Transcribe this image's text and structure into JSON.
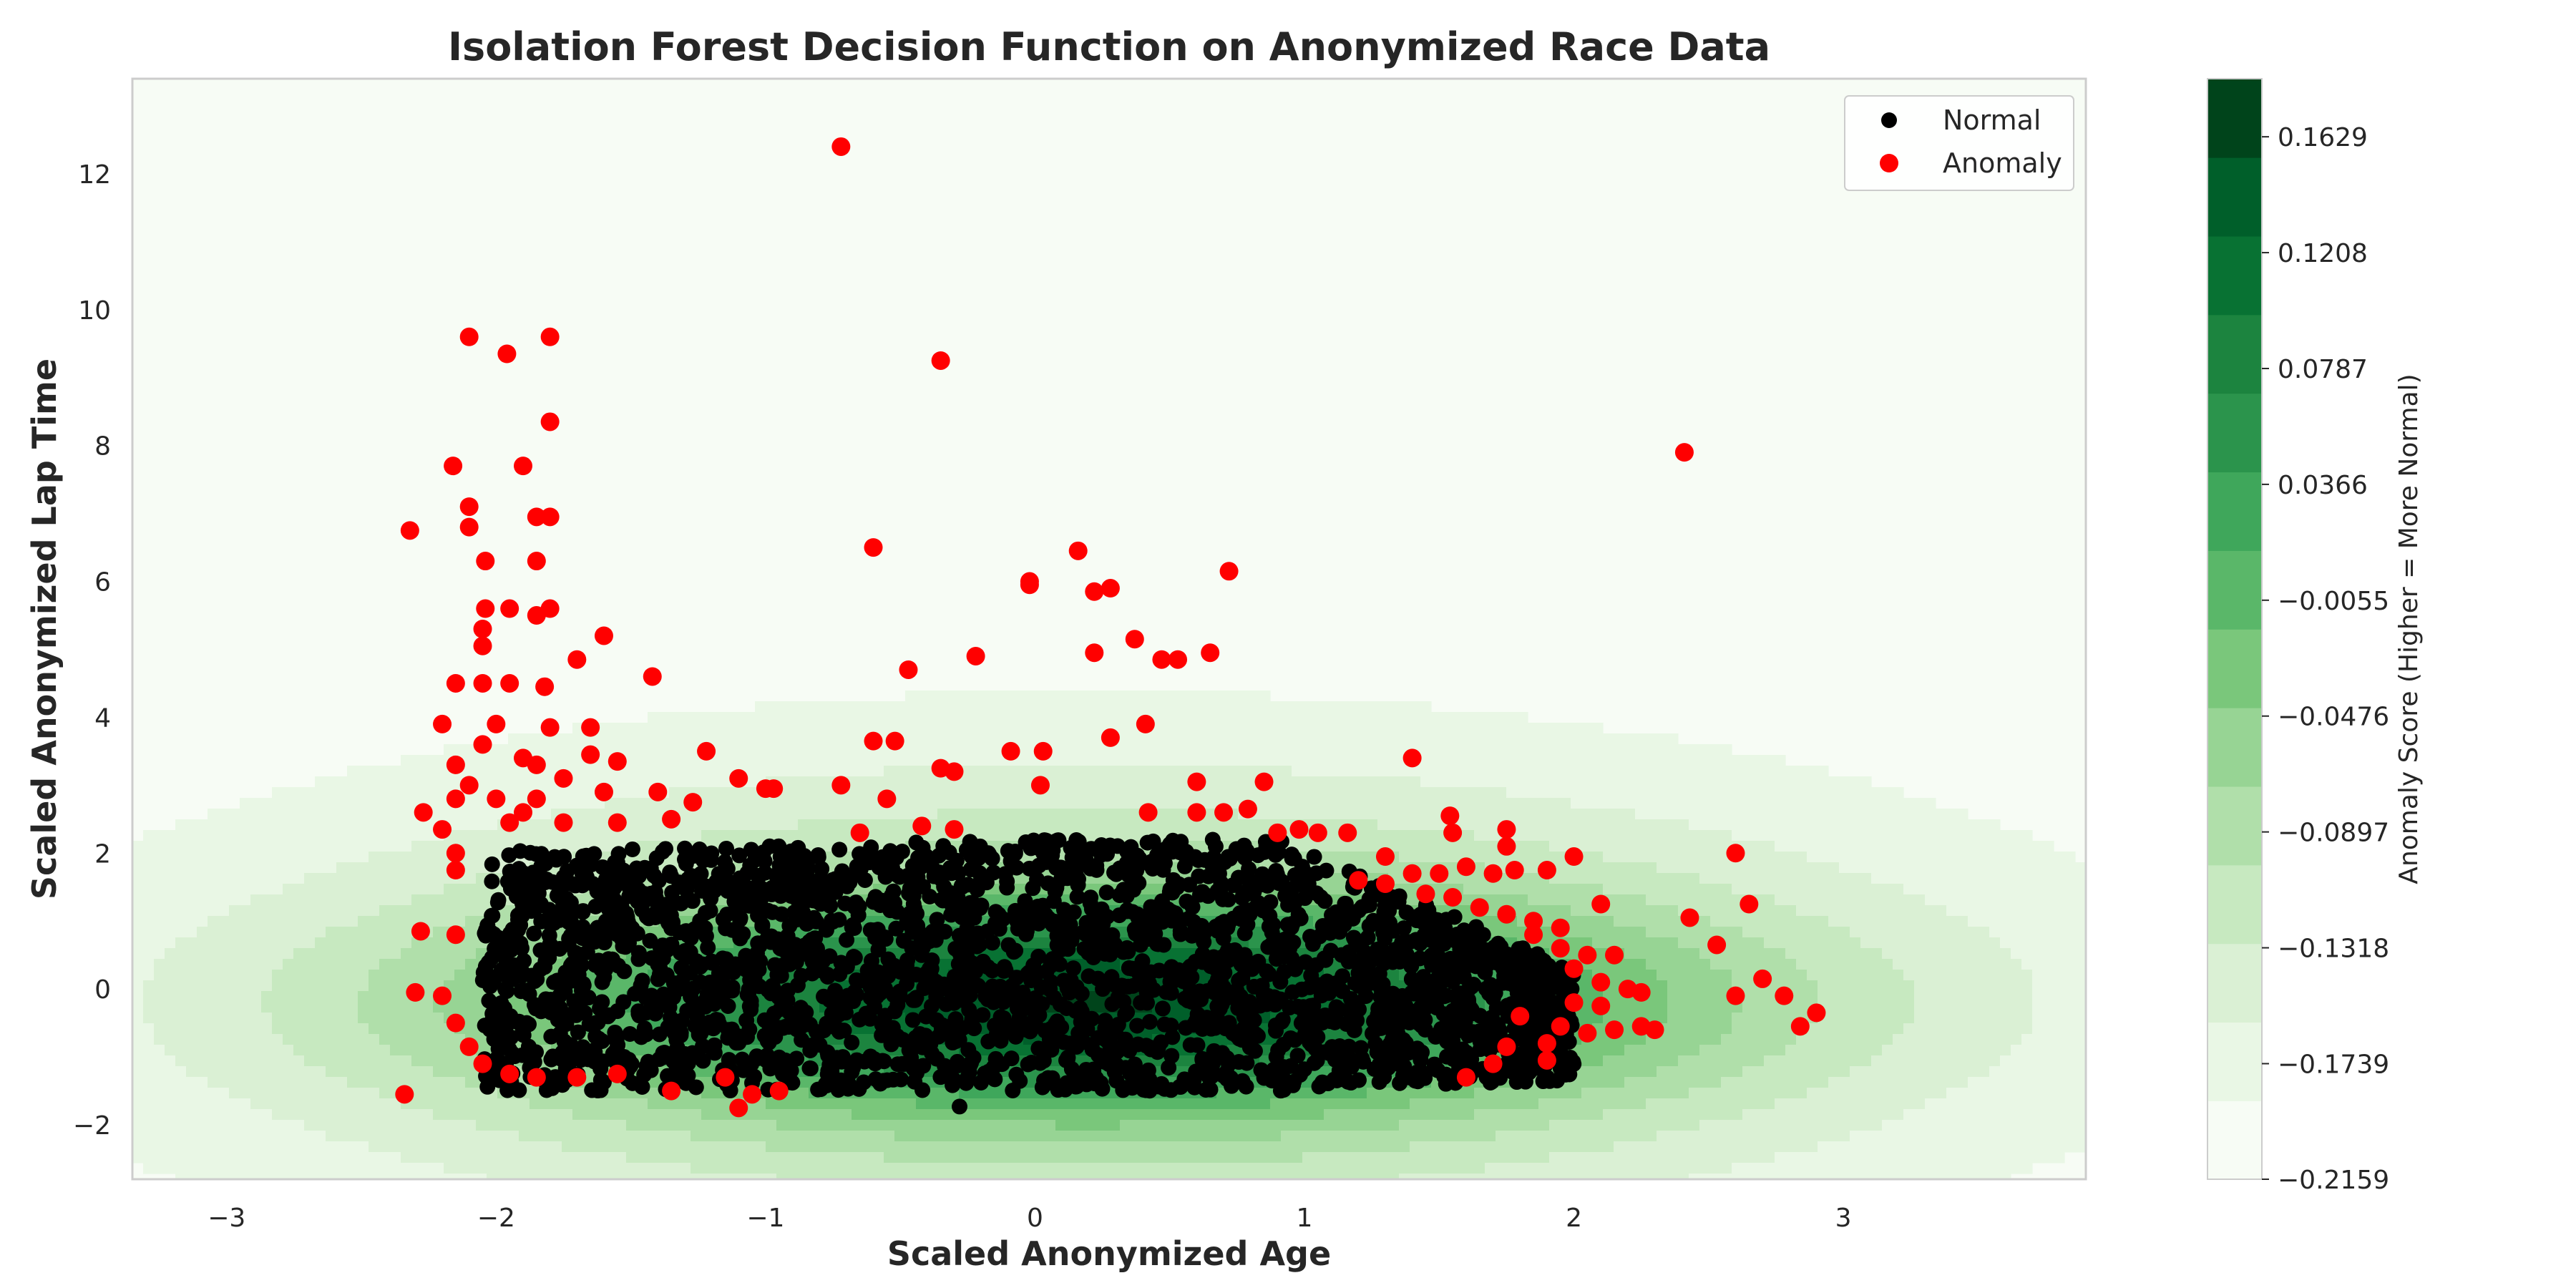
{
  "chart_data": {
    "type": "scatter",
    "title": "Isolation Forest Decision Function on Anonymized Race Data",
    "xlabel": "Scaled Anonymized Age",
    "ylabel": "Scaled Anonymized Lap Time",
    "xlim": [
      -3.35,
      3.9
    ],
    "ylim": [
      -2.8,
      13.4
    ],
    "x_ticks": [
      -3,
      -2,
      -1,
      0,
      1,
      2,
      3
    ],
    "y_ticks": [
      -2,
      0,
      2,
      4,
      6,
      8,
      10,
      12
    ],
    "x_tick_labels": [
      "−3",
      "−2",
      "−1",
      "0",
      "1",
      "2",
      "3"
    ],
    "y_tick_labels": [
      "−2",
      "0",
      "2",
      "4",
      "6",
      "8",
      "10",
      "12"
    ],
    "grid": false,
    "legend_position": "top-right",
    "background": {
      "type": "filled-contour",
      "colormap": "Greens",
      "meaning": "Isolation Forest decision function (anomaly score)",
      "score_range": [
        -0.2159,
        0.184
      ],
      "peak_location": [
        0.2,
        -0.2
      ],
      "low_region": "top-right"
    },
    "series": [
      {
        "name": "Normal",
        "color": "#000000",
        "description": "Dense cluster roughly x in [-2.05, 2.0], y in [-1.5, 2.2]",
        "region": {
          "x": [
            -2.05,
            2.0
          ],
          "y_low": -1.5,
          "y_high": 2.2
        },
        "extra_points": [
          [
            -0.28,
            -1.73
          ]
        ]
      },
      {
        "name": "Anomaly",
        "color": "#ff0000",
        "points": [
          [
            -0.72,
            12.4
          ],
          [
            -2.1,
            9.6
          ],
          [
            -1.96,
            9.35
          ],
          [
            -1.8,
            9.6
          ],
          [
            -0.35,
            9.25
          ],
          [
            -1.8,
            8.35
          ],
          [
            -2.32,
            6.75
          ],
          [
            -2.16,
            7.7
          ],
          [
            -2.1,
            7.1
          ],
          [
            -2.1,
            6.8
          ],
          [
            -1.9,
            7.7
          ],
          [
            -1.85,
            6.95
          ],
          [
            -1.8,
            6.95
          ],
          [
            -2.04,
            6.3
          ],
          [
            -1.85,
            6.3
          ],
          [
            -2.04,
            5.6
          ],
          [
            -1.95,
            5.6
          ],
          [
            -1.85,
            5.5
          ],
          [
            -1.8,
            5.6
          ],
          [
            -1.6,
            5.2
          ],
          [
            -2.05,
            5.3
          ],
          [
            -2.05,
            5.05
          ],
          [
            -2.15,
            4.5
          ],
          [
            -2.05,
            4.5
          ],
          [
            -1.95,
            4.5
          ],
          [
            -1.82,
            4.45
          ],
          [
            -1.7,
            4.85
          ],
          [
            -1.42,
            4.6
          ],
          [
            -2.2,
            3.9
          ],
          [
            -2.0,
            3.9
          ],
          [
            -1.8,
            3.85
          ],
          [
            -1.65,
            3.85
          ],
          [
            -2.15,
            3.3
          ],
          [
            -1.9,
            3.4
          ],
          [
            -1.65,
            3.45
          ],
          [
            -1.55,
            3.35
          ],
          [
            -1.22,
            3.5
          ],
          [
            -2.15,
            2.8
          ],
          [
            -2.0,
            2.8
          ],
          [
            -1.85,
            2.8
          ],
          [
            -1.6,
            2.9
          ],
          [
            -1.4,
            2.9
          ],
          [
            -1.27,
            2.75
          ],
          [
            -1.1,
            3.1
          ],
          [
            -0.97,
            2.95
          ],
          [
            -2.2,
            2.35
          ],
          [
            -1.95,
            2.45
          ],
          [
            -1.75,
            2.45
          ],
          [
            -1.55,
            2.45
          ],
          [
            -1.35,
            2.5
          ],
          [
            -2.27,
            2.6
          ],
          [
            -2.15,
            2.0
          ],
          [
            -2.15,
            1.75
          ],
          [
            -2.28,
            0.85
          ],
          [
            -2.15,
            0.8
          ],
          [
            -2.3,
            -0.05
          ],
          [
            -2.2,
            -0.1
          ],
          [
            -2.15,
            -0.5
          ],
          [
            -2.1,
            -0.85
          ],
          [
            -2.05,
            -1.1
          ],
          [
            -1.95,
            -1.25
          ],
          [
            -1.85,
            -1.3
          ],
          [
            -1.7,
            -1.3
          ],
          [
            -1.55,
            -1.25
          ],
          [
            -1.35,
            -1.5
          ],
          [
            -1.15,
            -1.3
          ],
          [
            -1.05,
            -1.55
          ],
          [
            -1.1,
            -1.75
          ],
          [
            -0.95,
            -1.5
          ],
          [
            -2.34,
            -1.55
          ],
          [
            -0.6,
            6.5
          ],
          [
            -0.6,
            3.65
          ],
          [
            -0.52,
            3.65
          ],
          [
            -0.47,
            4.7
          ],
          [
            -0.22,
            4.9
          ],
          [
            -0.35,
            3.25
          ],
          [
            -0.3,
            3.2
          ],
          [
            -0.42,
            2.4
          ],
          [
            -0.3,
            2.35
          ],
          [
            -0.55,
            2.8
          ],
          [
            -0.72,
            3.0
          ],
          [
            -0.65,
            2.3
          ],
          [
            -0.02,
            5.95
          ],
          [
            -0.02,
            6.0
          ],
          [
            -0.09,
            3.5
          ],
          [
            0.02,
            3.0
          ],
          [
            0.03,
            3.5
          ],
          [
            0.16,
            6.45
          ],
          [
            0.22,
            5.85
          ],
          [
            0.28,
            5.9
          ],
          [
            0.22,
            4.95
          ],
          [
            0.37,
            5.15
          ],
          [
            0.47,
            4.85
          ],
          [
            0.53,
            4.85
          ],
          [
            0.65,
            4.95
          ],
          [
            0.72,
            6.15
          ],
          [
            0.28,
            3.7
          ],
          [
            0.41,
            3.9
          ],
          [
            0.42,
            2.6
          ],
          [
            0.6,
            3.05
          ],
          [
            0.6,
            2.6
          ],
          [
            0.7,
            2.6
          ],
          [
            0.79,
            2.65
          ],
          [
            0.85,
            3.05
          ],
          [
            0.9,
            2.3
          ],
          [
            0.98,
            2.35
          ],
          [
            1.05,
            2.3
          ],
          [
            1.16,
            2.3
          ],
          [
            1.4,
            3.4
          ],
          [
            1.54,
            2.55
          ],
          [
            1.55,
            2.3
          ],
          [
            1.75,
            2.35
          ],
          [
            1.75,
            2.1
          ],
          [
            1.3,
            1.95
          ],
          [
            1.4,
            1.7
          ],
          [
            1.5,
            1.7
          ],
          [
            1.6,
            1.8
          ],
          [
            1.7,
            1.7
          ],
          [
            1.78,
            1.75
          ],
          [
            1.9,
            1.75
          ],
          [
            2.0,
            1.95
          ],
          [
            1.2,
            1.6
          ],
          [
            1.3,
            1.55
          ],
          [
            1.45,
            1.4
          ],
          [
            1.55,
            1.35
          ],
          [
            1.65,
            1.2
          ],
          [
            1.75,
            1.1
          ],
          [
            1.85,
            1.0
          ],
          [
            1.95,
            0.9
          ],
          [
            2.1,
            1.25
          ],
          [
            1.85,
            0.8
          ],
          [
            1.95,
            0.6
          ],
          [
            2.05,
            0.5
          ],
          [
            2.15,
            0.5
          ],
          [
            2.0,
            0.3
          ],
          [
            2.1,
            0.1
          ],
          [
            2.2,
            0.0
          ],
          [
            2.25,
            -0.05
          ],
          [
            2.0,
            -0.2
          ],
          [
            2.1,
            -0.25
          ],
          [
            2.15,
            -0.6
          ],
          [
            2.25,
            -0.55
          ],
          [
            2.3,
            -0.6
          ],
          [
            1.8,
            -0.4
          ],
          [
            1.95,
            -0.55
          ],
          [
            1.9,
            -0.8
          ],
          [
            2.05,
            -0.65
          ],
          [
            1.75,
            -0.85
          ],
          [
            1.6,
            -1.3
          ],
          [
            1.7,
            -1.1
          ],
          [
            1.9,
            -1.05
          ],
          [
            2.43,
            1.05
          ],
          [
            2.6,
            2.0
          ],
          [
            2.65,
            1.25
          ],
          [
            2.53,
            0.65
          ],
          [
            2.6,
            -0.1
          ],
          [
            2.7,
            0.15
          ],
          [
            2.78,
            -0.1
          ],
          [
            2.84,
            -0.55
          ],
          [
            2.9,
            -0.35
          ],
          [
            2.41,
            7.9
          ],
          [
            -1.0,
            2.95
          ],
          [
            -1.9,
            2.6
          ],
          [
            -2.05,
            3.6
          ],
          [
            -2.1,
            3.0
          ],
          [
            -1.75,
            3.1
          ],
          [
            -1.85,
            3.3
          ]
        ]
      }
    ],
    "colorbar": {
      "label": "Anomaly Score (Higher = More Normal)",
      "range": [
        -0.2159,
        0.184
      ],
      "tick_values": [
        0.1629,
        0.1208,
        0.0787,
        0.0366,
        -0.0055,
        -0.0476,
        -0.0897,
        -0.1318,
        -0.1739,
        -0.2159
      ],
      "tick_labels": [
        "0.1629",
        "0.1208",
        "0.0787",
        "0.0366",
        "−0.0055",
        "−0.0476",
        "−0.0897",
        "−0.1318",
        "−0.1739",
        "−0.2159"
      ],
      "colors": [
        "#f7fcf5",
        "#e9f7e5",
        "#daf0d4",
        "#c7e9c0",
        "#b0dfaa",
        "#97d494",
        "#7ac77b",
        "#5ab769",
        "#3fa75b",
        "#2b944c",
        "#1c843f",
        "#087233",
        "#005f2a",
        "#00441b"
      ]
    }
  }
}
